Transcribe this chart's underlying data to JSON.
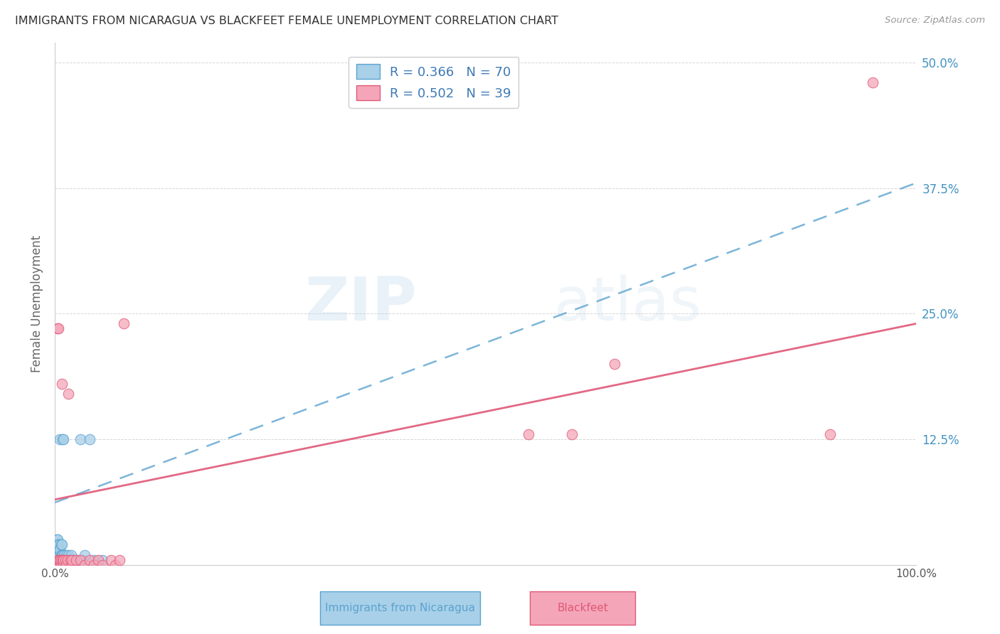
{
  "title": "IMMIGRANTS FROM NICARAGUA VS BLACKFEET FEMALE UNEMPLOYMENT CORRELATION CHART",
  "source": "Source: ZipAtlas.com",
  "ylabel": "Female Unemployment",
  "xlim": [
    0.0,
    1.0
  ],
  "ylim": [
    0.0,
    0.52
  ],
  "color_blue": "#A8D0E8",
  "color_pink": "#F4A6B8",
  "color_blue_line": "#5BA3D0",
  "color_pink_line": "#E05878",
  "R_blue": 0.366,
  "N_blue": 70,
  "R_pink": 0.502,
  "N_pink": 39,
  "background_color": "#ffffff",
  "grid_color": "#cccccc",
  "blue_x": [
    0.001,
    0.001,
    0.001,
    0.001,
    0.001,
    0.002,
    0.002,
    0.002,
    0.002,
    0.002,
    0.002,
    0.003,
    0.003,
    0.003,
    0.003,
    0.003,
    0.003,
    0.004,
    0.004,
    0.004,
    0.004,
    0.004,
    0.005,
    0.005,
    0.005,
    0.005,
    0.005,
    0.006,
    0.006,
    0.006,
    0.006,
    0.006,
    0.007,
    0.007,
    0.007,
    0.007,
    0.008,
    0.008,
    0.008,
    0.008,
    0.009,
    0.009,
    0.009,
    0.009,
    0.01,
    0.01,
    0.01,
    0.011,
    0.011,
    0.012,
    0.012,
    0.013,
    0.014,
    0.015,
    0.016,
    0.017,
    0.018,
    0.019,
    0.02,
    0.022,
    0.024,
    0.026,
    0.028,
    0.03,
    0.032,
    0.035,
    0.04,
    0.045,
    0.05,
    0.055
  ],
  "blue_y": [
    0.0,
    0.005,
    0.01,
    0.015,
    0.02,
    0.0,
    0.005,
    0.01,
    0.015,
    0.02,
    0.025,
    0.0,
    0.005,
    0.01,
    0.015,
    0.02,
    0.025,
    0.0,
    0.005,
    0.01,
    0.015,
    0.02,
    0.0,
    0.005,
    0.01,
    0.015,
    0.02,
    0.0,
    0.005,
    0.01,
    0.015,
    0.125,
    0.0,
    0.005,
    0.01,
    0.02,
    0.0,
    0.005,
    0.01,
    0.02,
    0.0,
    0.005,
    0.01,
    0.125,
    0.0,
    0.005,
    0.125,
    0.0,
    0.01,
    0.0,
    0.005,
    0.01,
    0.0,
    0.005,
    0.01,
    0.0,
    0.005,
    0.01,
    0.0,
    0.005,
    0.0,
    0.005,
    0.0,
    0.125,
    0.005,
    0.01,
    0.125,
    0.005,
    0.0,
    0.005
  ],
  "pink_x": [
    0.002,
    0.003,
    0.003,
    0.003,
    0.004,
    0.004,
    0.005,
    0.005,
    0.006,
    0.006,
    0.007,
    0.007,
    0.008,
    0.009,
    0.01,
    0.01,
    0.012,
    0.013,
    0.015,
    0.016,
    0.018,
    0.02,
    0.02,
    0.025,
    0.03,
    0.035,
    0.04,
    0.045,
    0.05,
    0.055,
    0.065,
    0.07,
    0.075,
    0.08,
    0.55,
    0.6,
    0.65,
    0.9,
    0.95
  ],
  "pink_y": [
    0.0,
    0.0,
    0.005,
    0.235,
    0.0,
    0.235,
    0.0,
    0.005,
    0.0,
    0.005,
    0.0,
    0.005,
    0.18,
    0.005,
    0.0,
    0.005,
    0.005,
    0.0,
    0.005,
    0.17,
    0.005,
    0.0,
    0.005,
    0.005,
    0.005,
    0.0,
    0.005,
    0.0,
    0.005,
    0.0,
    0.005,
    0.0,
    0.005,
    0.24,
    0.13,
    0.13,
    0.2,
    0.13,
    0.48
  ],
  "blue_trend_x0": 0.0,
  "blue_trend_y0": 0.062,
  "blue_trend_x1": 1.0,
  "blue_trend_y1": 0.38,
  "pink_trend_x0": 0.0,
  "pink_trend_y0": 0.065,
  "pink_trend_x1": 1.0,
  "pink_trend_y1": 0.24
}
